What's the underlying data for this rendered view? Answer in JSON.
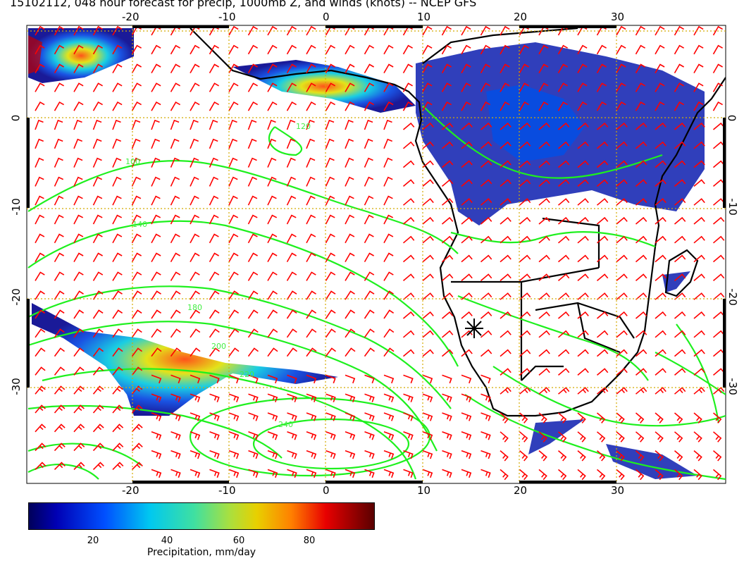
{
  "title": "15102112, 048 hour forecast for precip, 1000mb Z, and winds (knots) -- NCEP GFS",
  "map": {
    "lon_range": [
      -31,
      41
    ],
    "lat_range": [
      -40,
      10
    ],
    "x_ticks": [
      -20,
      -10,
      0,
      10,
      20,
      30
    ],
    "y_ticks": [
      0,
      -10,
      -20,
      -30
    ],
    "contour_variable": "1000mb Z",
    "contour_labels": [
      "100",
      "140",
      "160",
      "180",
      "200",
      "220",
      "240",
      "120"
    ],
    "wind_units": "knots",
    "marker": {
      "lon": 15,
      "lat": -24,
      "symbol": "asterisk"
    }
  },
  "colorbar": {
    "label": "Precipitation, mm/day",
    "tick_values": [
      "20",
      "40",
      "60",
      "80"
    ],
    "range": [
      0,
      100
    ]
  },
  "colors": {
    "contour": "#00ff00",
    "contour_label": "#44ee44",
    "wind_barb": "#ff0000",
    "coastline": "#000000",
    "grid": "#d4aa00",
    "precip_low": "#00008c",
    "precip_high": "#5a0000"
  }
}
